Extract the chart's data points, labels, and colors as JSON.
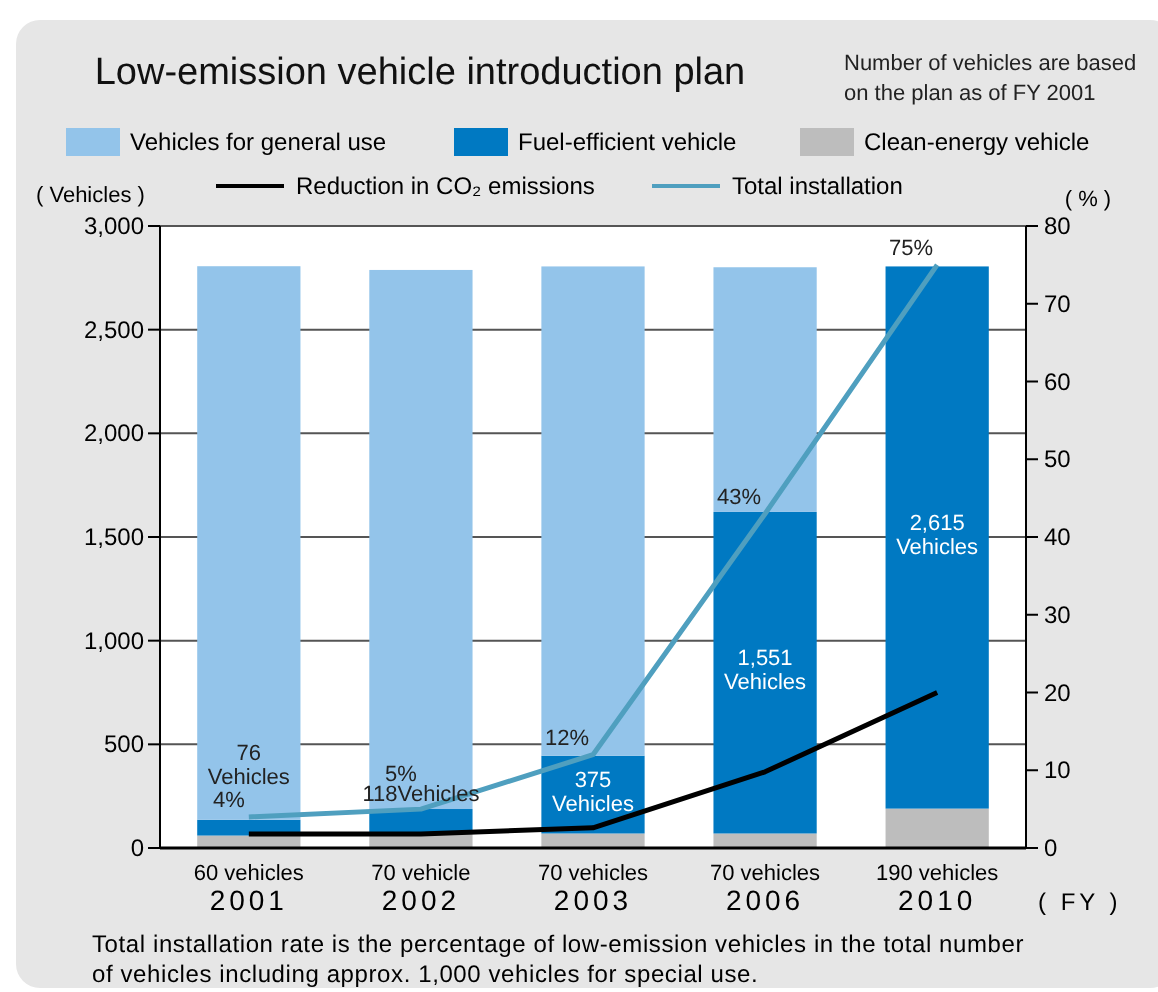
{
  "chart_data": {
    "type": "bar",
    "title": "Low-emission vehicle introduction plan",
    "subtitle": "Number of vehicles are based on the plan as of FY 2001",
    "ylabel": "( Vehicles )",
    "y2label": "( % )",
    "xlabel": "( FY )",
    "annotations": [
      "Total installation rate is the percentage of low-emission vehicles in the total number of vehicles including approx. 1,000 vehicles for special use."
    ],
    "categories": [
      "2001",
      "2002",
      "2003",
      "2006",
      "2010"
    ],
    "stacked": true,
    "grid": "y",
    "legend": "top",
    "ylim": [
      0,
      3000
    ],
    "yticks": [
      0,
      500,
      {
        "value": 1000,
        "label": "1,000"
      },
      {
        "value": 1500,
        "label": "1,500"
      },
      {
        "value": 2000,
        "label": "2,000"
      },
      {
        "value": 2500,
        "label": "2,500"
      },
      {
        "value": 3000,
        "label": "3,000"
      }
    ],
    "y2lim": [
      0,
      80
    ],
    "y2ticks": [
      0,
      10,
      20,
      30,
      40,
      50,
      60,
      70,
      80
    ],
    "series": [
      {
        "name": "Clean-energy vehicle",
        "color": "#bdbdbd",
        "values": [
          60,
          70,
          70,
          70,
          190
        ],
        "value_labels": [
          "60 vehicles",
          "70 vehicle",
          "70 vehicles",
          "70 vehicles",
          "190 vehicles"
        ]
      },
      {
        "name": "Fuel-efficient vehicle",
        "color": "#0079c2",
        "values": [
          76,
          118,
          375,
          1551,
          2615
        ],
        "value_labels": [
          "76\nVehicles",
          "118Vehicles",
          "375\nVehicles",
          "1,551\nVehicles",
          "2,615\nVehicles"
        ]
      },
      {
        "name": "Vehicles for general use",
        "color": "#93c4ea",
        "values": [
          2670,
          2600,
          2360,
          1180,
          0
        ]
      },
      {
        "name": "Reduction in CO₂ emissions",
        "type": "line",
        "axis": "y2",
        "color": "#000000",
        "values": [
          1.8,
          1.8,
          2.6,
          9.8,
          20
        ]
      },
      {
        "name": "Total installation",
        "type": "line",
        "axis": "y2",
        "color": "#4f9fbf",
        "values": [
          4,
          5,
          12,
          43,
          75
        ],
        "value_labels": [
          "4%",
          "5%",
          "12%",
          "43%",
          "75%"
        ]
      }
    ]
  }
}
